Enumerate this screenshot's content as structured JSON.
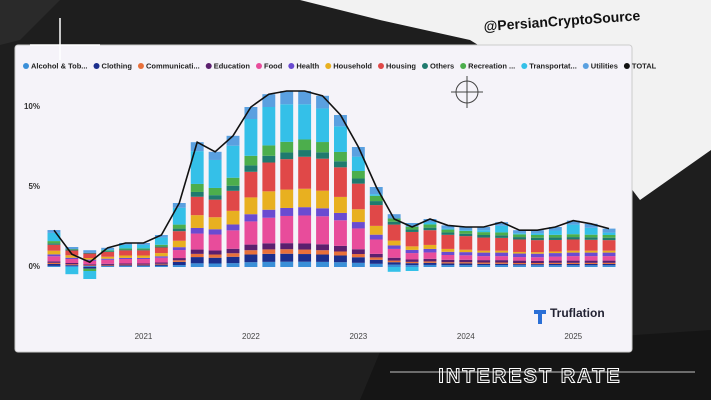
{
  "watermark": "@PersianCryptoSource",
  "caption": "INTEREST RATE",
  "brand": "Truflation",
  "chart_data": {
    "type": "bar",
    "stacked": true,
    "categories": [
      null,
      null,
      null,
      null,
      null,
      "2021",
      null,
      null,
      null,
      null,
      null,
      "2022",
      null,
      null,
      null,
      null,
      null,
      "2023",
      null,
      null,
      null,
      null,
      null,
      "2024",
      null,
      null,
      null,
      null,
      null,
      "2025",
      null,
      null
    ],
    "ylim": [
      -2.5,
      11.5
    ],
    "yticks": [
      {
        "value": 0,
        "label": "0%"
      },
      {
        "value": 5,
        "label": "5%"
      },
      {
        "value": 10,
        "label": "10%"
      }
    ],
    "grid": false,
    "legend": "top",
    "series": [
      {
        "name": "Alcohol & Tob...",
        "color": "#3a8fd8",
        "values": [
          0.07,
          0.07,
          0.06,
          0.06,
          0.06,
          0.06,
          0.07,
          0.12,
          0.23,
          0.22,
          0.24,
          0.3,
          0.32,
          0.33,
          0.33,
          0.32,
          0.3,
          0.26,
          0.2,
          0.15,
          0.12,
          0.13,
          0.12,
          0.12,
          0.12,
          0.12,
          0.11,
          0.11,
          0.11,
          0.11,
          0.11,
          0.11
        ]
      },
      {
        "name": "Clothing",
        "color": "#1b2e8c",
        "values": [
          0.12,
          0.05,
          -0.1,
          0.03,
          0.05,
          0.05,
          0.08,
          0.2,
          0.39,
          0.36,
          0.4,
          0.48,
          0.5,
          0.5,
          0.48,
          0.46,
          0.42,
          0.35,
          0.25,
          0.15,
          0.12,
          0.13,
          0.1,
          0.1,
          0.08,
          0.08,
          0.07,
          0.07,
          0.08,
          0.08,
          0.08,
          0.08
        ]
      },
      {
        "name": "Communicati...",
        "color": "#e8703a",
        "values": [
          0.07,
          0.05,
          0.04,
          0.04,
          0.04,
          0.04,
          0.05,
          0.1,
          0.2,
          0.2,
          0.22,
          0.27,
          0.28,
          0.28,
          0.28,
          0.27,
          0.25,
          0.2,
          0.15,
          0.1,
          0.08,
          0.09,
          0.08,
          0.08,
          0.08,
          0.08,
          0.07,
          0.07,
          0.07,
          0.07,
          0.07,
          0.07
        ]
      },
      {
        "name": "Education",
        "color": "#5b1f6e",
        "values": [
          0.09,
          0.08,
          0.07,
          0.07,
          0.07,
          0.07,
          0.08,
          0.14,
          0.27,
          0.25,
          0.28,
          0.35,
          0.38,
          0.38,
          0.38,
          0.37,
          0.35,
          0.3,
          0.22,
          0.18,
          0.15,
          0.16,
          0.15,
          0.15,
          0.15,
          0.15,
          0.15,
          0.14,
          0.14,
          0.14,
          0.14,
          0.14
        ]
      },
      {
        "name": "Food",
        "color": "#e84c9b",
        "values": [
          0.32,
          0.25,
          0.22,
          0.25,
          0.28,
          0.28,
          0.3,
          0.5,
          1.0,
          1.0,
          1.15,
          1.45,
          1.6,
          1.7,
          1.75,
          1.75,
          1.6,
          1.3,
          0.9,
          0.55,
          0.4,
          0.4,
          0.3,
          0.28,
          0.25,
          0.25,
          0.22,
          0.22,
          0.25,
          0.28,
          0.28,
          0.28
        ]
      },
      {
        "name": "Health",
        "color": "#6a4bd1",
        "values": [
          0.12,
          0.08,
          0.07,
          0.07,
          0.07,
          0.07,
          0.09,
          0.18,
          0.35,
          0.33,
          0.37,
          0.45,
          0.5,
          0.5,
          0.52,
          0.5,
          0.46,
          0.4,
          0.3,
          0.22,
          0.2,
          0.22,
          0.2,
          0.2,
          0.22,
          0.22,
          0.22,
          0.22,
          0.22,
          0.22,
          0.22,
          0.22
        ]
      },
      {
        "name": "Household",
        "color": "#e8b020",
        "values": [
          0.23,
          0.15,
          0.1,
          0.12,
          0.15,
          0.15,
          0.2,
          0.4,
          0.8,
          0.75,
          0.85,
          1.05,
          1.15,
          1.15,
          1.15,
          1.1,
          1.0,
          0.8,
          0.55,
          0.3,
          0.22,
          0.25,
          0.18,
          0.15,
          0.12,
          0.12,
          0.1,
          0.1,
          0.1,
          0.12,
          0.12,
          0.12
        ]
      },
      {
        "name": "Housing",
        "color": "#e04848",
        "values": [
          0.37,
          0.3,
          0.28,
          0.3,
          0.32,
          0.32,
          0.35,
          0.6,
          1.15,
          1.1,
          1.25,
          1.6,
          1.8,
          1.9,
          2.0,
          2.0,
          1.85,
          1.6,
          1.3,
          1.0,
          0.9,
          0.92,
          0.88,
          0.85,
          0.82,
          0.8,
          0.78,
          0.75,
          0.72,
          0.7,
          0.68,
          0.66
        ]
      },
      {
        "name": "Others",
        "color": "#1f7a6e",
        "values": [
          0.09,
          0.06,
          0.04,
          0.05,
          0.05,
          0.05,
          0.07,
          0.16,
          0.3,
          0.28,
          0.32,
          0.4,
          0.42,
          0.42,
          0.42,
          0.4,
          0.38,
          0.32,
          0.25,
          0.18,
          0.15,
          0.16,
          0.15,
          0.15,
          0.16,
          0.16,
          0.15,
          0.15,
          0.15,
          0.15,
          0.15,
          0.15
        ]
      },
      {
        "name": "Recreation ...",
        "color": "#4cae4c",
        "values": [
          0.14,
          0.03,
          -0.15,
          0.05,
          0.07,
          0.07,
          0.1,
          0.25,
          0.5,
          0.45,
          0.5,
          0.6,
          0.65,
          0.66,
          0.66,
          0.64,
          0.58,
          0.47,
          0.33,
          0.2,
          0.18,
          0.2,
          0.18,
          0.17,
          0.18,
          0.18,
          0.17,
          0.17,
          0.17,
          0.18,
          0.17,
          0.17
        ]
      },
      {
        "name": "Transportat...",
        "color": "#34c0e8",
        "values": [
          0.51,
          -0.45,
          -0.5,
          0.05,
          0.22,
          0.22,
          0.45,
          1.05,
          2.05,
          1.75,
          2.0,
          2.3,
          2.4,
          2.35,
          2.2,
          2.1,
          1.6,
          0.9,
          0.1,
          -0.3,
          -0.25,
          0.12,
          0.06,
          0.05,
          0.12,
          0.42,
          0.07,
          0.1,
          0.27,
          0.6,
          0.43,
          0.15
        ]
      },
      {
        "name": "Utilities",
        "color": "#5aa0e0",
        "values": [
          0.18,
          0.13,
          0.17,
          0.11,
          0.12,
          0.12,
          0.16,
          0.3,
          0.56,
          0.51,
          0.62,
          0.75,
          0.8,
          0.83,
          0.83,
          0.79,
          0.71,
          0.6,
          0.45,
          0.27,
          0.23,
          0.22,
          0.2,
          0.2,
          0.2,
          0.22,
          0.19,
          0.2,
          0.22,
          0.25,
          0.25,
          0.25
        ]
      },
      {
        "name": "TOTAL",
        "color": "#111111",
        "type": "line",
        "values": [
          2.3,
          0.8,
          0.3,
          1.2,
          1.5,
          1.5,
          2.0,
          4.0,
          7.8,
          7.2,
          8.2,
          10.0,
          10.8,
          11.0,
          11.0,
          10.7,
          9.5,
          7.5,
          5.0,
          3.0,
          2.5,
          3.0,
          2.6,
          2.5,
          2.5,
          2.8,
          2.3,
          2.3,
          2.5,
          2.9,
          2.7,
          2.4
        ]
      }
    ]
  }
}
